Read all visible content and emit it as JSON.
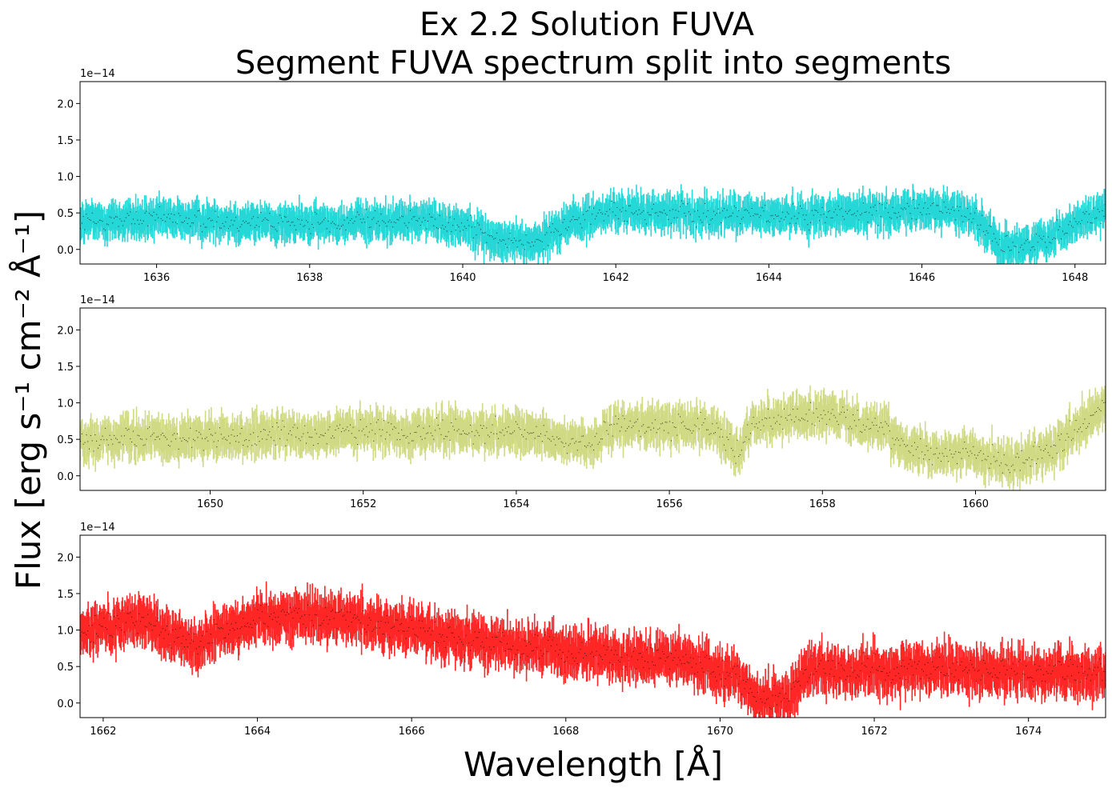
{
  "chart_data": {
    "type": "line",
    "title": "Ex 2.2 Solution FUVA",
    "subtitle": "Segment FUVA spectrum split into segments",
    "xlabel": "Wavelength [Å]",
    "ylabel": "Flux [erg s⁻¹ cm⁻² Å⁻¹]",
    "offset_text": "1e−14",
    "panels": [
      {
        "name": "segment-1",
        "color": "#00d0d0",
        "xlim": [
          1635.0,
          1648.4
        ],
        "ylim": [
          -0.2,
          2.3
        ],
        "xticks": [
          1636,
          1638,
          1640,
          1642,
          1644,
          1646,
          1648
        ],
        "xtick_labels": [
          "1636",
          "1638",
          "1640",
          "1642",
          "1644",
          "1646",
          "1648"
        ],
        "yticks": [
          0.0,
          0.5,
          1.0,
          1.5,
          2.0
        ],
        "ytick_labels": [
          "0.0",
          "0.5",
          "1.0",
          "1.5",
          "2.0"
        ],
        "baseline": [
          [
            1635.0,
            0.38
          ],
          [
            1636.0,
            0.42
          ],
          [
            1638.0,
            0.35
          ],
          [
            1639.5,
            0.4
          ],
          [
            1640.1,
            0.32
          ],
          [
            1640.4,
            0.12
          ],
          [
            1641.0,
            0.1
          ],
          [
            1641.3,
            0.35
          ],
          [
            1642.0,
            0.52
          ],
          [
            1644.0,
            0.45
          ],
          [
            1646.3,
            0.55
          ],
          [
            1646.7,
            0.45
          ],
          [
            1647.0,
            0.05
          ],
          [
            1647.4,
            0.05
          ],
          [
            1648.4,
            0.55
          ]
        ],
        "noise": 0.25
      },
      {
        "name": "segment-2",
        "color": "#c8d46e",
        "xlim": [
          1648.3,
          1661.7
        ],
        "ylim": [
          -0.2,
          2.3
        ],
        "xticks": [
          1650,
          1652,
          1654,
          1656,
          1658,
          1660
        ],
        "xtick_labels": [
          "1650",
          "1652",
          "1654",
          "1656",
          "1658",
          "1660"
        ],
        "yticks": [
          0.0,
          0.5,
          1.0,
          1.5,
          2.0
        ],
        "ytick_labels": [
          "0.0",
          "0.5",
          "1.0",
          "1.5",
          "2.0"
        ],
        "baseline": [
          [
            1648.3,
            0.5
          ],
          [
            1650.0,
            0.52
          ],
          [
            1652.0,
            0.6
          ],
          [
            1654.0,
            0.62
          ],
          [
            1654.5,
            0.48
          ],
          [
            1655.0,
            0.45
          ],
          [
            1655.4,
            0.7
          ],
          [
            1656.5,
            0.68
          ],
          [
            1656.9,
            0.35
          ],
          [
            1657.1,
            0.75
          ],
          [
            1658.0,
            0.85
          ],
          [
            1658.8,
            0.65
          ],
          [
            1659.2,
            0.35
          ],
          [
            1660.0,
            0.3
          ],
          [
            1660.5,
            0.15
          ],
          [
            1661.0,
            0.35
          ],
          [
            1661.7,
            0.95
          ]
        ],
        "noise": 0.28
      },
      {
        "name": "segment-3",
        "color": "#ff0000",
        "xlim": [
          1661.7,
          1675.0
        ],
        "ylim": [
          -0.2,
          2.3
        ],
        "xticks": [
          1662,
          1664,
          1666,
          1668,
          1670,
          1672,
          1674
        ],
        "xtick_labels": [
          "1662",
          "1664",
          "1666",
          "1668",
          "1670",
          "1672",
          "1674"
        ],
        "yticks": [
          0.0,
          0.5,
          1.0,
          1.5,
          2.0
        ],
        "ytick_labels": [
          "0.0",
          "0.5",
          "1.0",
          "1.5",
          "2.0"
        ],
        "baseline": [
          [
            1661.7,
            0.95
          ],
          [
            1662.5,
            1.15
          ],
          [
            1663.0,
            0.9
          ],
          [
            1663.2,
            0.75
          ],
          [
            1663.5,
            1.0
          ],
          [
            1664.2,
            1.2
          ],
          [
            1665.0,
            1.2
          ],
          [
            1666.5,
            0.9
          ],
          [
            1668.0,
            0.7
          ],
          [
            1669.5,
            0.6
          ],
          [
            1670.2,
            0.35
          ],
          [
            1670.5,
            0.05
          ],
          [
            1670.9,
            0.05
          ],
          [
            1671.1,
            0.45
          ],
          [
            1673.0,
            0.45
          ],
          [
            1675.0,
            0.4
          ]
        ],
        "noise": 0.32
      }
    ]
  }
}
